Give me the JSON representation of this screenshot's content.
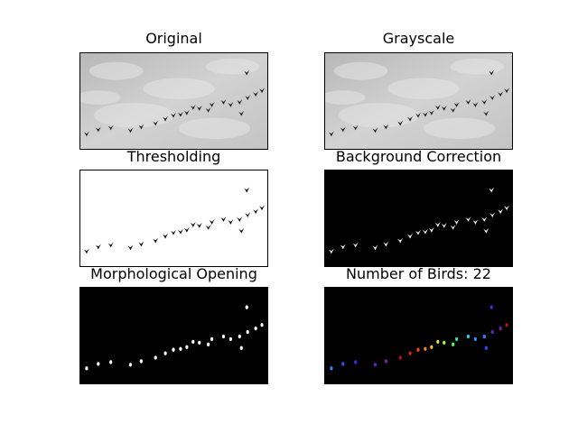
{
  "panels": [
    {
      "title": "Original",
      "style": "photo"
    },
    {
      "title": "Grayscale",
      "style": "photo"
    },
    {
      "title": "Thresholding",
      "style": "threshold"
    },
    {
      "title": "Background Correction",
      "style": "inverted"
    },
    {
      "title": "Morphological Opening",
      "style": "opened"
    },
    {
      "title": "Number of Birds: 22",
      "style": "labeled"
    }
  ],
  "colors": {
    "sky": "#c9c9c9",
    "bird": "#1a1a1a",
    "foreground": "#ffffff",
    "background": "#000000",
    "label_palette": [
      "#3a7fff",
      "#2f4fff",
      "#3030e0",
      "#6020c0",
      "#8020a0",
      "#c01010",
      "#e02020",
      "#ff4010",
      "#ff8020",
      "#ffc030",
      "#e0e040",
      "#a0ff40",
      "#40ff60",
      "#30e0a0",
      "#30d0e0",
      "#3090ff"
    ]
  }
}
